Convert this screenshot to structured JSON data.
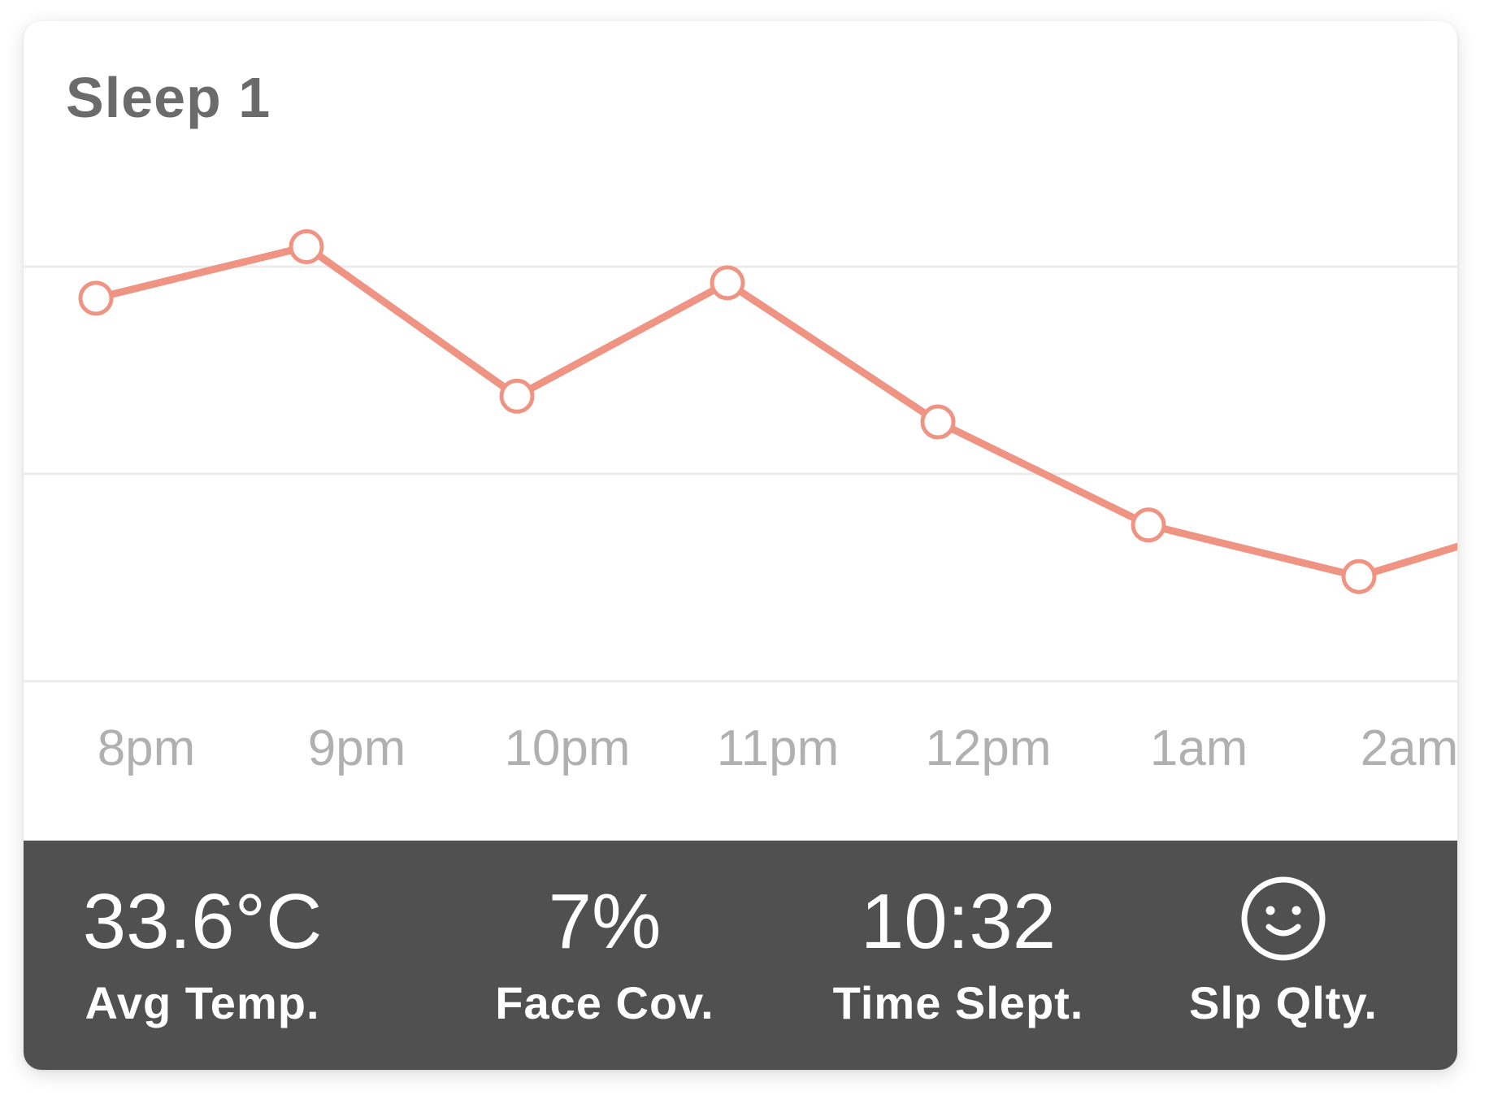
{
  "card": {
    "title": "Sleep 1"
  },
  "chart_data": {
    "type": "line",
    "categories": [
      "8pm",
      "9pm",
      "10pm",
      "11pm",
      "12pm",
      "1am",
      "2am"
    ],
    "values": [
      74,
      84,
      55,
      77,
      50,
      30,
      20
    ],
    "continuation_value": 26,
    "ylim": [
      0,
      100
    ],
    "grid": true,
    "line_color": "#ef9383",
    "title": "",
    "xlabel": "",
    "ylabel": ""
  },
  "stats": [
    {
      "value": "33.6°C",
      "label": "Avg Temp."
    },
    {
      "value": "7%",
      "label": "Face Cov."
    },
    {
      "value": "10:32",
      "label": "Time Slept."
    },
    {
      "value": "",
      "label": "Slp Qlty.",
      "icon": "smiley-face-icon"
    }
  ],
  "colors": {
    "accent": "#ef9383",
    "stats_background": "#505050",
    "gridline": "#ececec",
    "tick_text": "#b0b0b0"
  }
}
